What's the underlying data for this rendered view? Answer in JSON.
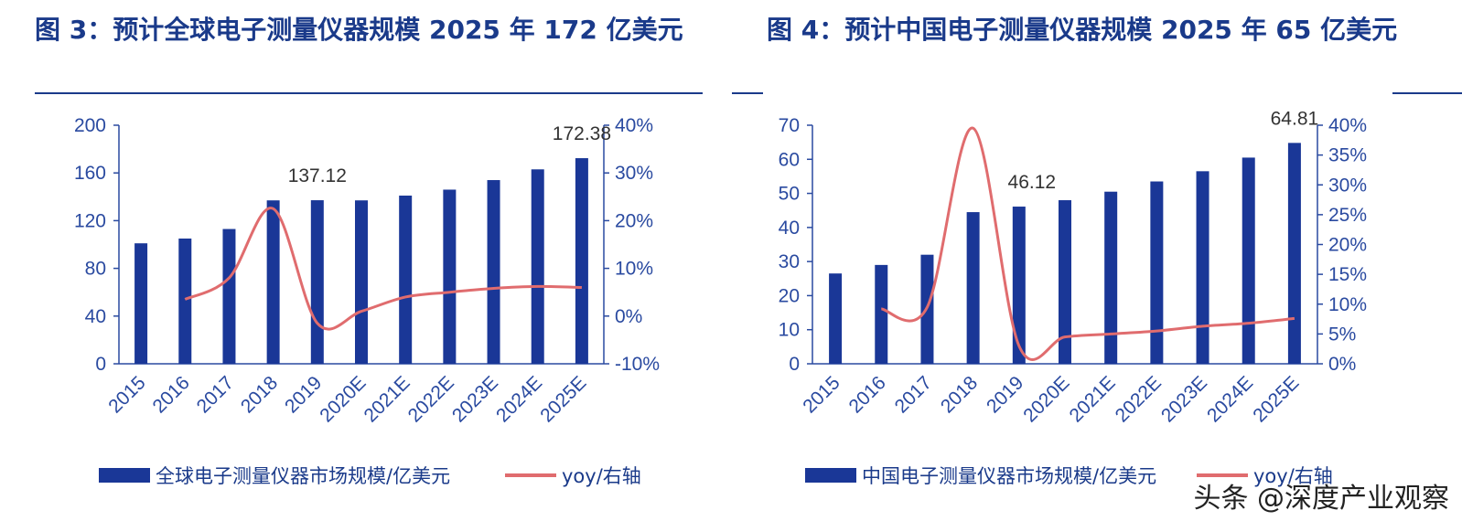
{
  "charts": [
    {
      "title": "图 3：预计全球电子测量仪器规模 2025 年 172 亿美元",
      "bar_label": "全球电子测量仪器市场规模/亿美元",
      "line_label": "yoy/右轴",
      "annotations": [
        {
          "index": 4,
          "text": "137.12"
        },
        {
          "index": 10,
          "text": "172.38"
        }
      ]
    },
    {
      "title": "图 4：预计中国电子测量仪器规模 2025 年 65 亿美元",
      "bar_label": "中国电子测量仪器市场规模/亿美元",
      "line_label": "yoy/右轴",
      "annotations": [
        {
          "index": 4,
          "text": "46.12"
        },
        {
          "index": 10,
          "text": "64.81"
        }
      ]
    }
  ],
  "watermark": "头条 @深度产业观察",
  "colors": {
    "bar": "#1a3797",
    "line": "#e06c6e",
    "axis": "#2a4aa0",
    "title": "#1a3a8a"
  },
  "chart_data": [
    {
      "type": "bar",
      "title": "图 3：预计全球电子测量仪器规模 2025 年 172 亿美元",
      "categories": [
        "2015",
        "2016",
        "2017",
        "2018",
        "2019",
        "2020E",
        "2021E",
        "2022E",
        "2023E",
        "2024E",
        "2025E"
      ],
      "ylim": [
        0,
        200
      ],
      "yticks": [
        0,
        40,
        80,
        120,
        160,
        200
      ],
      "y2lim": [
        -10,
        40
      ],
      "y2ticks": [
        "-10%",
        "0%",
        "10%",
        "20%",
        "30%",
        "40%"
      ],
      "y2tick_values": [
        -10,
        0,
        10,
        20,
        30,
        40
      ],
      "legend_position": "bottom",
      "series": [
        {
          "name": "全球电子测量仪器市场规模/亿美元",
          "type": "bar",
          "axis": "left",
          "values": [
            101,
            105,
            113,
            137,
            137.12,
            137,
            141,
            146,
            154,
            163,
            172.38
          ]
        },
        {
          "name": "yoy/右轴",
          "type": "line",
          "axis": "right",
          "values": [
            null,
            3.5,
            8,
            22.5,
            -1.5,
            1,
            4,
            5,
            5.8,
            6.2,
            6
          ]
        }
      ]
    },
    {
      "type": "bar",
      "title": "图 4：预计中国电子测量仪器规模 2025 年 65 亿美元",
      "categories": [
        "2015",
        "2016",
        "2017",
        "2018",
        "2019",
        "2020E",
        "2021E",
        "2022E",
        "2023E",
        "2024E",
        "2025E"
      ],
      "ylim": [
        0,
        70
      ],
      "yticks": [
        0,
        10,
        20,
        30,
        40,
        50,
        60,
        70
      ],
      "y2lim": [
        0,
        40
      ],
      "y2ticks": [
        "0%",
        "5%",
        "10%",
        "15%",
        "20%",
        "25%",
        "30%",
        "35%",
        "40%"
      ],
      "y2tick_values": [
        0,
        5,
        10,
        15,
        20,
        25,
        30,
        35,
        40
      ],
      "legend_position": "bottom",
      "series": [
        {
          "name": "中国电子测量仪器市场规模/亿美元",
          "type": "bar",
          "axis": "left",
          "values": [
            26.5,
            29,
            32,
            44.5,
            46.12,
            48,
            50.5,
            53.5,
            56.5,
            60.5,
            64.81
          ]
        },
        {
          "name": "yoy/右轴",
          "type": "line",
          "axis": "right",
          "values": [
            null,
            9.2,
            9.5,
            39.5,
            3,
            4.5,
            5,
            5.5,
            6.3,
            6.8,
            7.6
          ]
        }
      ]
    }
  ]
}
